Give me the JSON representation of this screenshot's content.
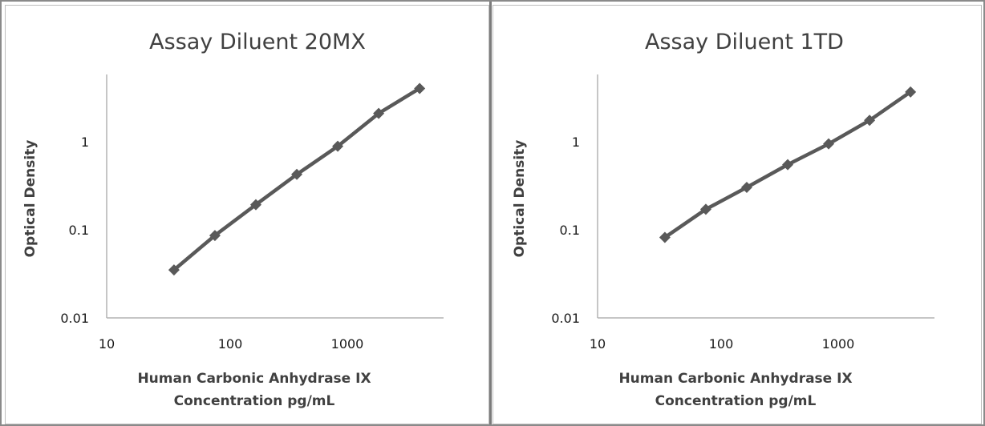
{
  "chart_data": [
    {
      "type": "line",
      "title": "Assay Diluent 20MX",
      "xlabel": [
        "Human Carbonic Anhydrase IX",
        "Concentration pg/mL"
      ],
      "ylabel": "Optical Density",
      "x_scale": "log",
      "y_scale": "log",
      "xlim": [
        10,
        3000
      ],
      "ylim": [
        0.01,
        5
      ],
      "x_ticks": [
        "10",
        "100",
        "1000"
      ],
      "y_ticks": [
        "0.01",
        "0.1",
        "1"
      ],
      "grid": false,
      "series": [
        {
          "x": [
            31.25,
            62.5,
            125,
            250,
            500,
            1000,
            2000
          ],
          "y": [
            0.034,
            0.082,
            0.18,
            0.39,
            0.8,
            1.85,
            3.5
          ]
        }
      ],
      "colors": {
        "line": "#595959",
        "axis": "#b3b3b3"
      }
    },
    {
      "type": "line",
      "title": "Assay Diluent 1TD",
      "xlabel": [
        "Human Carbonic Anhydrase IX",
        "Concentration pg/mL"
      ],
      "ylabel": "Optical Density",
      "x_scale": "log",
      "y_scale": "log",
      "xlim": [
        10,
        3000
      ],
      "ylim": [
        0.01,
        5
      ],
      "x_ticks": [
        "10",
        "100",
        "1000"
      ],
      "y_ticks": [
        "0.01",
        "0.1",
        "1"
      ],
      "grid": false,
      "series": [
        {
          "x": [
            31.25,
            62.5,
            125,
            250,
            500,
            1000,
            2000
          ],
          "y": [
            0.078,
            0.16,
            0.28,
            0.5,
            0.85,
            1.55,
            3.2
          ]
        }
      ],
      "colors": {
        "line": "#595959",
        "axis": "#b3b3b3"
      }
    }
  ]
}
